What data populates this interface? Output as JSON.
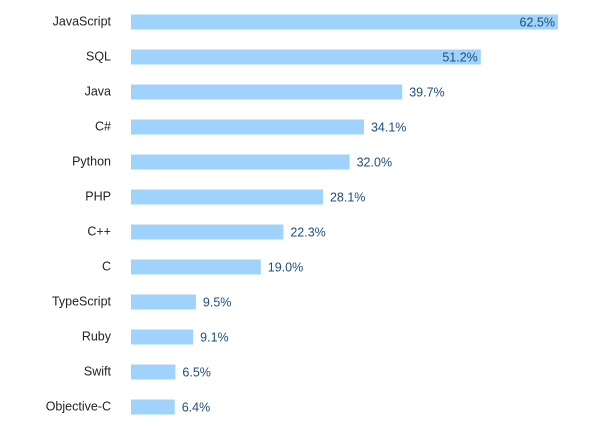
{
  "chart_data": {
    "type": "bar",
    "orientation": "horizontal",
    "categories": [
      "JavaScript",
      "SQL",
      "Java",
      "C#",
      "Python",
      "PHP",
      "C++",
      "C",
      "TypeScript",
      "Ruby",
      "Swift",
      "Objective-C"
    ],
    "values": [
      62.5,
      51.2,
      39.7,
      34.1,
      32.0,
      28.1,
      22.3,
      19.0,
      9.5,
      9.1,
      6.5,
      6.4
    ],
    "value_labels": [
      "62.5%",
      "51.2%",
      "39.7%",
      "34.1%",
      "32.0%",
      "28.1%",
      "22.3%",
      "19.0%",
      "9.5%",
      "9.1%",
      "6.5%",
      "6.4%"
    ],
    "color": "#9fd3fb"
  }
}
